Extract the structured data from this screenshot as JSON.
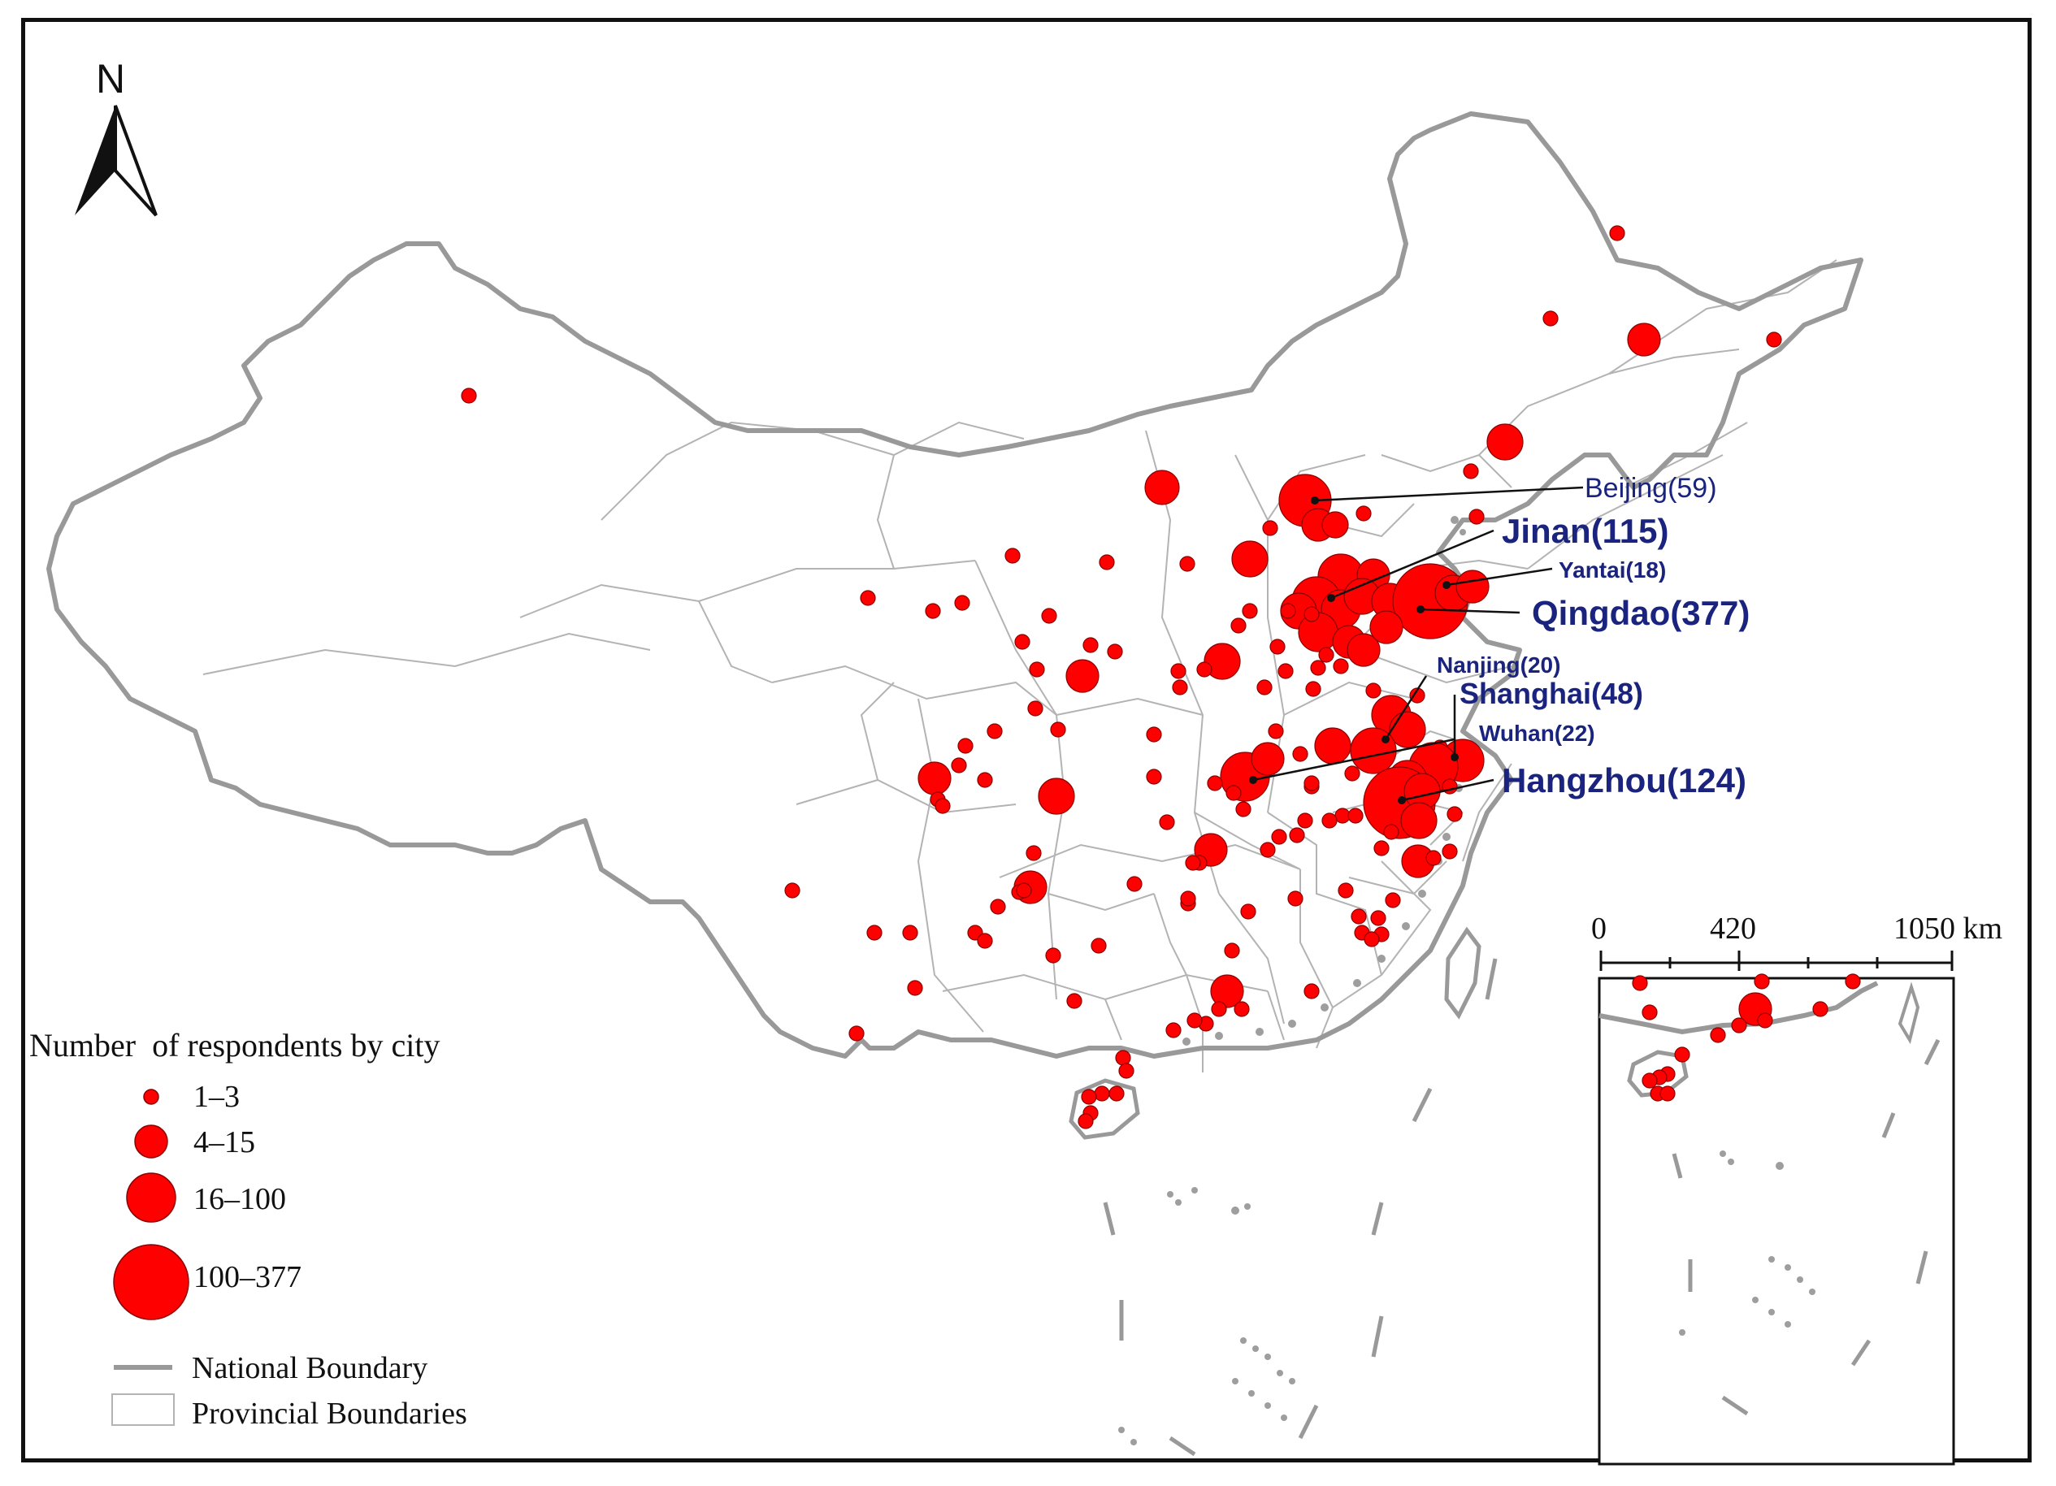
{
  "north_arrow": {
    "label": "N"
  },
  "scale_bar": {
    "ticks": [
      "0",
      "420",
      "1050 km"
    ]
  },
  "legend": {
    "title": "Number  of respondents by city",
    "classes": [
      "1–3",
      "4–15",
      "16–100",
      "100–377"
    ],
    "national_boundary_label": "National Boundary",
    "provincial_boundaries_label": "Provincial Boundaries"
  },
  "city_labels": {
    "beijing": "Beijing(59)",
    "jinan": "Jinan(115)",
    "yantai": "Yantai(18)",
    "qingdao": "Qingdao(377)",
    "nanjing": "Nanjing(20)",
    "shanghai": "Shanghai(48)",
    "wuhan": "Wuhan(22)",
    "hangzhou": "Hangzhou(124)"
  },
  "colors": {
    "marker_fill": "#ff0000",
    "marker_stroke": "#8b0000",
    "national_boundary": "#999999",
    "provincial_boundary": "#b3b3b3",
    "label_color": "#1a237e",
    "frame": "#111111"
  }
}
